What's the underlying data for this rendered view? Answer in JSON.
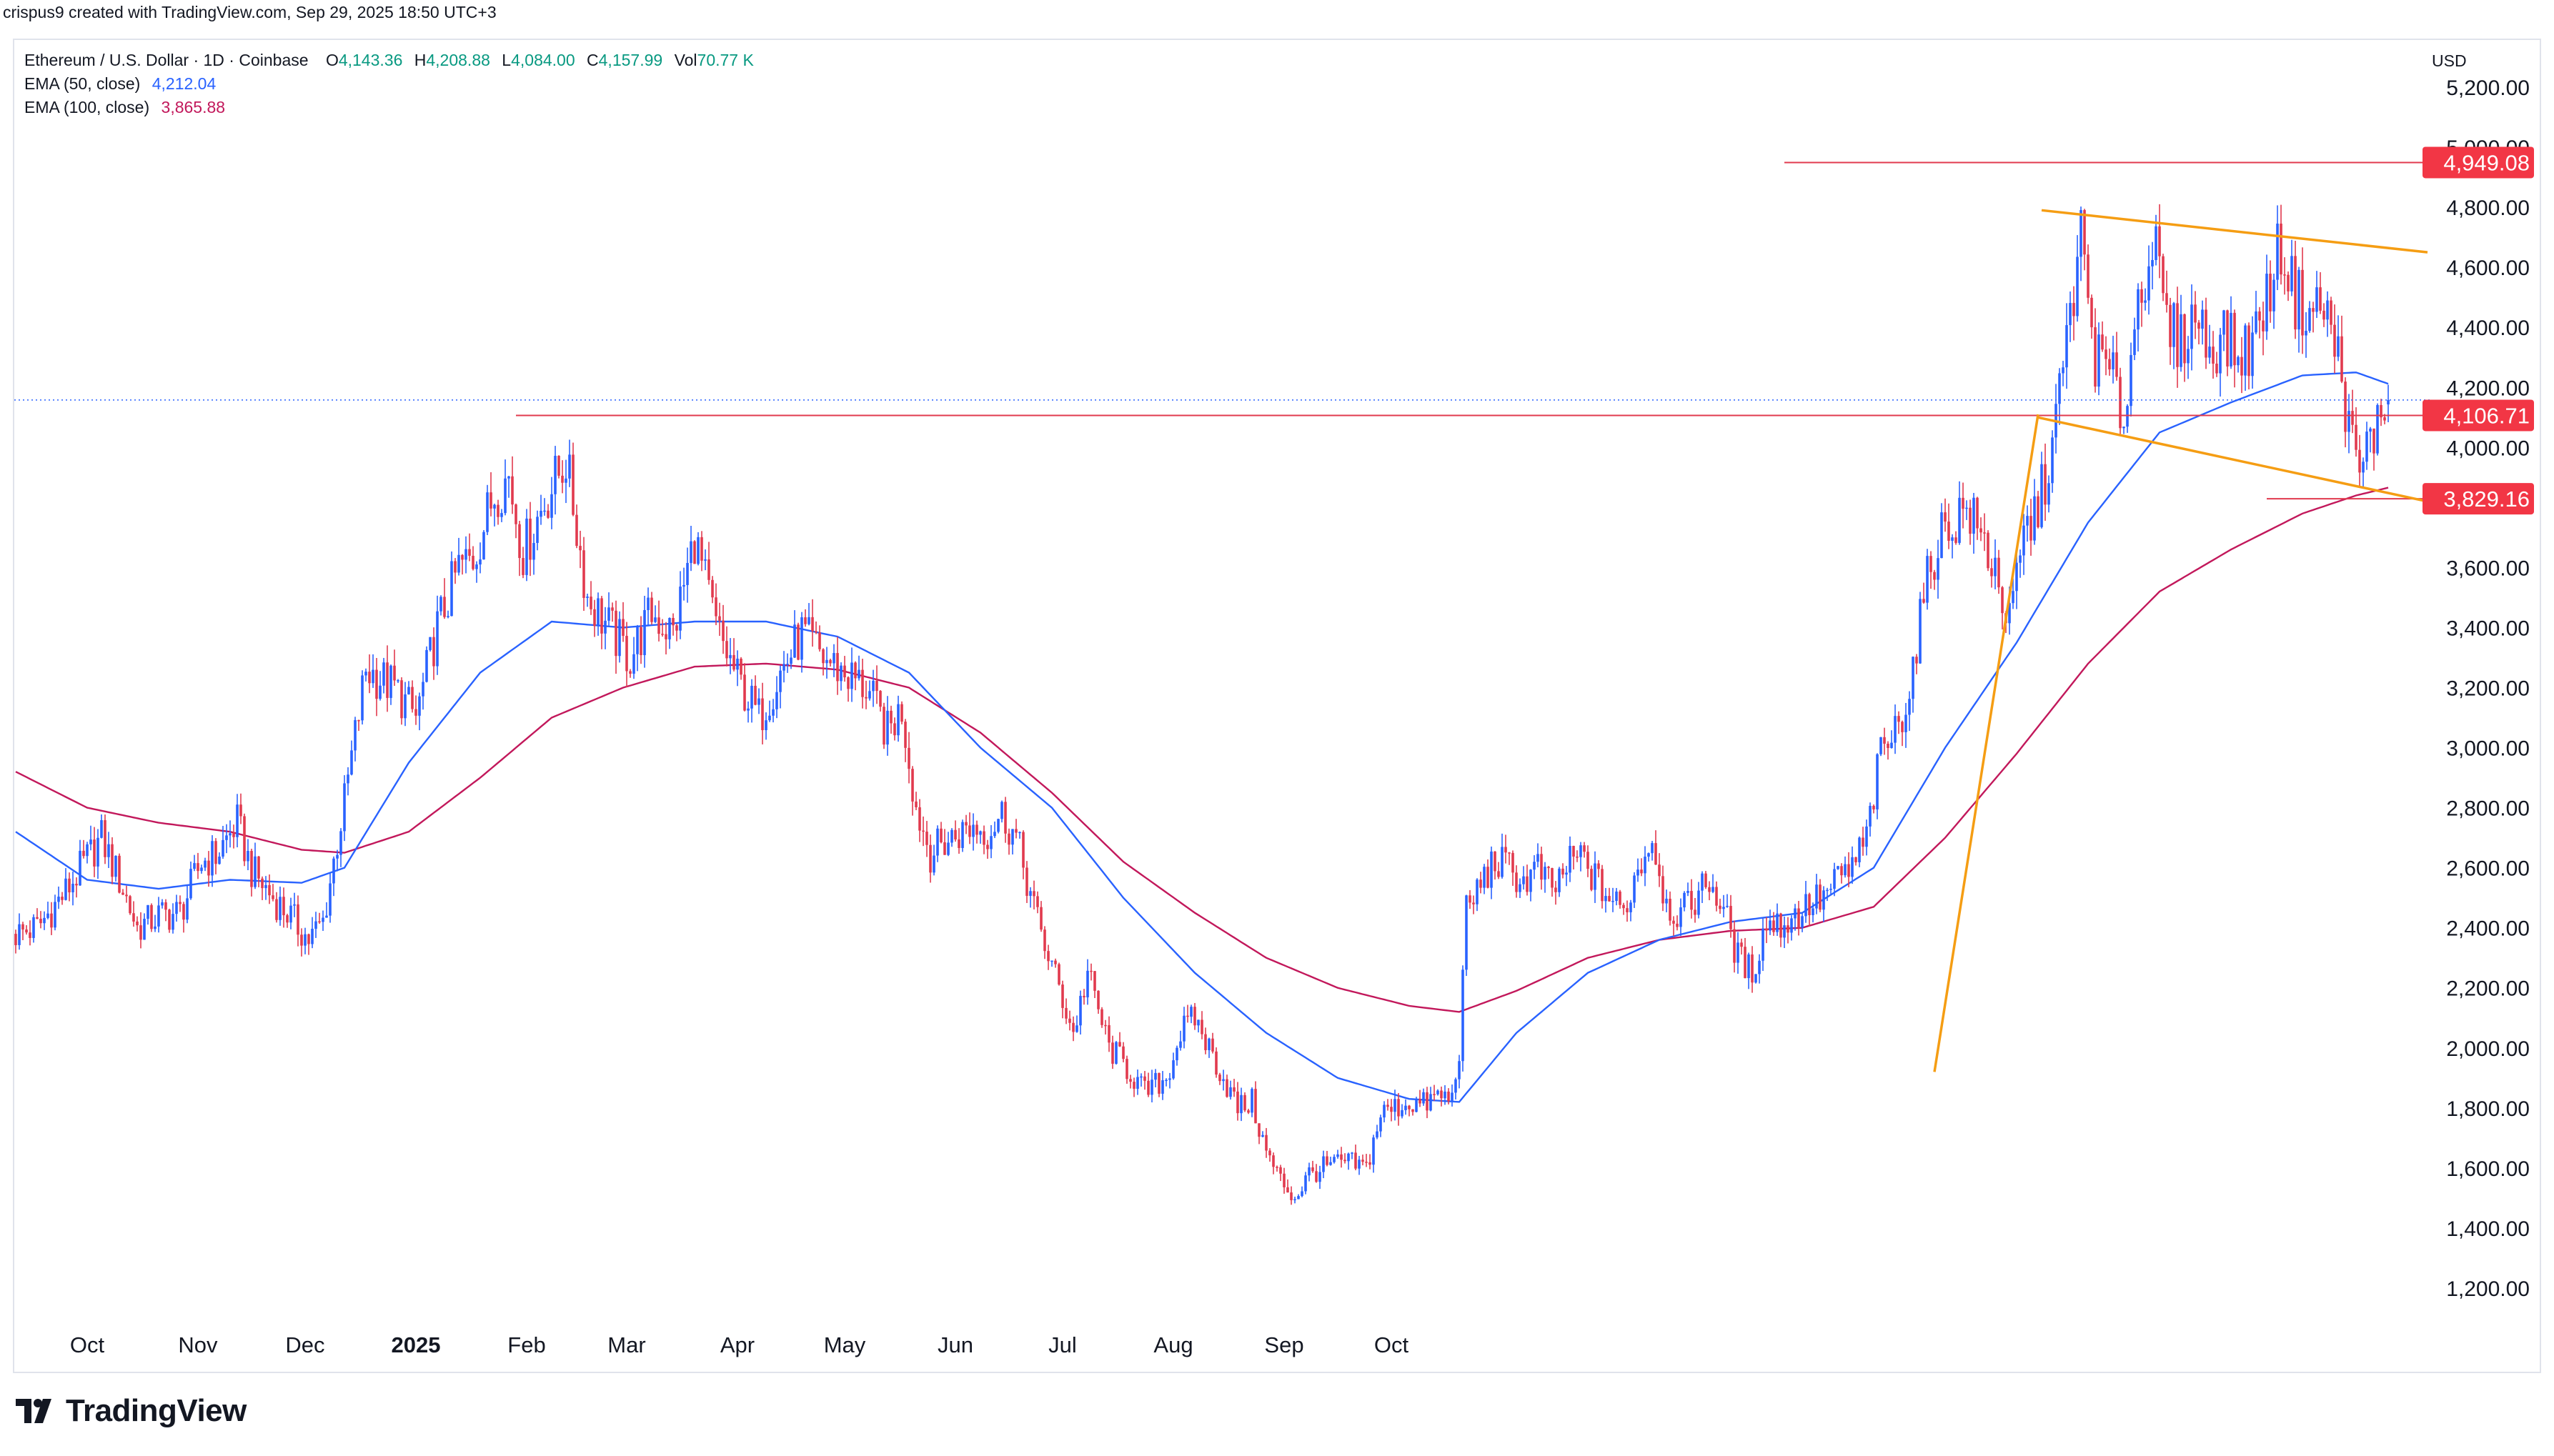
{
  "caption": "crispus9 created with TradingView.com, Sep 29, 2025 18:50 UTC+3",
  "legend": {
    "symbol": "Ethereum / U.S. Dollar · 1D · Coinbase",
    "open_key": "O",
    "open": "4,143.36",
    "high_key": "H",
    "high": "4,208.88",
    "low_key": "L",
    "low": "4,084.00",
    "close_key": "C",
    "close": "4,157.99",
    "vol_key": "Vol",
    "vol": "70.77 K",
    "ema50_label": "EMA (50, close)",
    "ema50_value": "4,212.04",
    "ema100_label": "EMA (100, close)",
    "ema100_value": "3,865.88"
  },
  "currency": "USD",
  "brand": "TradingView",
  "icon": "tradingview-logo-icon",
  "colors": {
    "up": "#089981",
    "candle_up": "#2962ff",
    "candle_down": "#e13a4e",
    "ema50": "#2962ff",
    "ema100": "#c2185b",
    "level_line": "#e13a4e",
    "pattern": "#f59d13",
    "tag_bg": "#f23645"
  },
  "chart_data": {
    "type": "candlestick",
    "title": "Ethereum / U.S. Dollar · 1D · Coinbase",
    "ylim": [
      1100,
      5300
    ],
    "y_ticks": [
      "1,200.00",
      "1,400.00",
      "1,600.00",
      "1,800.00",
      "2,000.00",
      "2,200.00",
      "2,400.00",
      "2,600.00",
      "2,800.00",
      "3,000.00",
      "3,200.00",
      "3,400.00",
      "3,600.00",
      "4,000.00",
      "4,200.00",
      "4,400.00",
      "4,600.00",
      "4,800.00",
      "5,000.00",
      "5,200.00"
    ],
    "x_ticks": [
      {
        "label": "Oct",
        "bold": false
      },
      {
        "label": "Nov",
        "bold": false
      },
      {
        "label": "Dec",
        "bold": false
      },
      {
        "label": "2025",
        "bold": true
      },
      {
        "label": "Feb",
        "bold": false
      },
      {
        "label": "Mar",
        "bold": false
      },
      {
        "label": "Apr",
        "bold": false
      },
      {
        "label": "May",
        "bold": false
      },
      {
        "label": "Jun",
        "bold": false
      },
      {
        "label": "Jul",
        "bold": false
      },
      {
        "label": "Aug",
        "bold": false
      },
      {
        "label": "Sep",
        "bold": false
      },
      {
        "label": "Oct",
        "bold": false
      }
    ],
    "start_date": "2024-09-11",
    "close_path": [
      [
        0,
        2380
      ],
      [
        6,
        2400
      ],
      [
        14,
        2520
      ],
      [
        20,
        2630
      ],
      [
        24,
        2700
      ],
      [
        30,
        2530
      ],
      [
        34,
        2400
      ],
      [
        40,
        2440
      ],
      [
        46,
        2450
      ],
      [
        52,
        2620
      ],
      [
        56,
        2640
      ],
      [
        62,
        2750
      ],
      [
        66,
        2590
      ],
      [
        72,
        2500
      ],
      [
        76,
        2450
      ],
      [
        82,
        2360
      ],
      [
        86,
        2420
      ],
      [
        92,
        2820
      ],
      [
        98,
        3260
      ],
      [
        106,
        3200
      ],
      [
        112,
        3100
      ],
      [
        118,
        3400
      ],
      [
        124,
        3600
      ],
      [
        128,
        3630
      ],
      [
        134,
        3850
      ],
      [
        138,
        3900
      ],
      [
        142,
        3650
      ],
      [
        148,
        3820
      ],
      [
        154,
        3960
      ],
      [
        160,
        3500
      ],
      [
        166,
        3400
      ],
      [
        172,
        3300
      ],
      [
        178,
        3450
      ],
      [
        184,
        3380
      ],
      [
        190,
        3700
      ],
      [
        196,
        3400
      ],
      [
        202,
        3230
      ],
      [
        208,
        3100
      ],
      [
        214,
        3250
      ],
      [
        220,
        3380
      ],
      [
        226,
        3300
      ],
      [
        232,
        3250
      ],
      [
        238,
        3200
      ],
      [
        244,
        3050
      ],
      [
        248,
        3130
      ],
      [
        252,
        2800
      ],
      [
        256,
        2650
      ],
      [
        262,
        2700
      ],
      [
        268,
        2740
      ],
      [
        272,
        2720
      ],
      [
        276,
        2780
      ],
      [
        280,
        2700
      ],
      [
        286,
        2420
      ],
      [
        292,
        2200
      ],
      [
        296,
        2050
      ],
      [
        300,
        2250
      ],
      [
        306,
        2000
      ],
      [
        310,
        1950
      ],
      [
        316,
        1850
      ],
      [
        322,
        1900
      ],
      [
        326,
        2050
      ],
      [
        330,
        2100
      ],
      [
        334,
        2000
      ],
      [
        338,
        1900
      ],
      [
        342,
        1800
      ],
      [
        346,
        1820
      ],
      [
        350,
        1650
      ],
      [
        354,
        1560
      ],
      [
        358,
        1500
      ],
      [
        362,
        1580
      ],
      [
        366,
        1600
      ],
      [
        372,
        1620
      ],
      [
        378,
        1600
      ],
      [
        382,
        1780
      ],
      [
        386,
        1800
      ],
      [
        390,
        1820
      ],
      [
        394,
        1810
      ],
      [
        398,
        1840
      ],
      [
        402,
        1830
      ],
      [
        404,
        2000
      ],
      [
        406,
        2450
      ],
      [
        410,
        2550
      ],
      [
        414,
        2620
      ],
      [
        418,
        2600
      ],
      [
        422,
        2550
      ],
      [
        426,
        2600
      ],
      [
        430,
        2520
      ],
      [
        434,
        2600
      ],
      [
        438,
        2640
      ],
      [
        442,
        2560
      ],
      [
        446,
        2500
      ],
      [
        450,
        2450
      ],
      [
        454,
        2600
      ],
      [
        458,
        2700
      ],
      [
        462,
        2480
      ],
      [
        466,
        2440
      ],
      [
        470,
        2500
      ],
      [
        474,
        2560
      ],
      [
        478,
        2460
      ],
      [
        482,
        2300
      ],
      [
        486,
        2250
      ],
      [
        490,
        2420
      ],
      [
        494,
        2410
      ],
      [
        498,
        2440
      ],
      [
        502,
        2480
      ],
      [
        506,
        2500
      ],
      [
        510,
        2560
      ],
      [
        514,
        2600
      ],
      [
        518,
        2700
      ],
      [
        522,
        2980
      ],
      [
        526,
        3050
      ],
      [
        530,
        3200
      ],
      [
        534,
        3500
      ],
      [
        538,
        3700
      ],
      [
        542,
        3750
      ],
      [
        546,
        3800
      ],
      [
        550,
        3700
      ],
      [
        554,
        3600
      ],
      [
        558,
        3400
      ],
      [
        562,
        3700
      ],
      [
        566,
        3800
      ],
      [
        570,
        4000
      ],
      [
        574,
        4350
      ],
      [
        578,
        4700
      ],
      [
        582,
        4300
      ],
      [
        586,
        4250
      ],
      [
        590,
        4100
      ],
      [
        594,
        4500
      ],
      [
        598,
        4700
      ],
      [
        602,
        4400
      ],
      [
        606,
        4350
      ],
      [
        610,
        4450
      ],
      [
        614,
        4330
      ],
      [
        618,
        4380
      ],
      [
        622,
        4300
      ],
      [
        626,
        4350
      ],
      [
        630,
        4500
      ],
      [
        634,
        4680
      ],
      [
        638,
        4500
      ],
      [
        642,
        4450
      ],
      [
        646,
        4470
      ],
      [
        650,
        4300
      ],
      [
        652,
        4150
      ],
      [
        654,
        4000
      ],
      [
        656,
        3900
      ],
      [
        658,
        4000
      ],
      [
        660,
        4050
      ],
      [
        662,
        4100
      ],
      [
        664,
        4158
      ]
    ],
    "ema50_path": [
      [
        0,
        2720
      ],
      [
        20,
        2560
      ],
      [
        40,
        2530
      ],
      [
        60,
        2560
      ],
      [
        80,
        2550
      ],
      [
        92,
        2600
      ],
      [
        110,
        2950
      ],
      [
        130,
        3250
      ],
      [
        150,
        3420
      ],
      [
        170,
        3400
      ],
      [
        190,
        3420
      ],
      [
        210,
        3420
      ],
      [
        230,
        3370
      ],
      [
        250,
        3250
      ],
      [
        270,
        3000
      ],
      [
        290,
        2800
      ],
      [
        310,
        2500
      ],
      [
        330,
        2250
      ],
      [
        350,
        2050
      ],
      [
        370,
        1900
      ],
      [
        390,
        1830
      ],
      [
        404,
        1820
      ],
      [
        420,
        2050
      ],
      [
        440,
        2250
      ],
      [
        460,
        2360
      ],
      [
        480,
        2420
      ],
      [
        500,
        2450
      ],
      [
        520,
        2600
      ],
      [
        540,
        3000
      ],
      [
        560,
        3350
      ],
      [
        580,
        3750
      ],
      [
        600,
        4050
      ],
      [
        620,
        4150
      ],
      [
        640,
        4240
      ],
      [
        655,
        4250
      ],
      [
        664,
        4212
      ]
    ],
    "ema100_path": [
      [
        0,
        2920
      ],
      [
        20,
        2800
      ],
      [
        40,
        2750
      ],
      [
        60,
        2720
      ],
      [
        80,
        2660
      ],
      [
        92,
        2650
      ],
      [
        110,
        2720
      ],
      [
        130,
        2900
      ],
      [
        150,
        3100
      ],
      [
        170,
        3200
      ],
      [
        190,
        3270
      ],
      [
        210,
        3280
      ],
      [
        230,
        3260
      ],
      [
        250,
        3200
      ],
      [
        270,
        3050
      ],
      [
        290,
        2850
      ],
      [
        310,
        2620
      ],
      [
        330,
        2450
      ],
      [
        350,
        2300
      ],
      [
        370,
        2200
      ],
      [
        390,
        2140
      ],
      [
        404,
        2120
      ],
      [
        420,
        2190
      ],
      [
        440,
        2300
      ],
      [
        460,
        2360
      ],
      [
        480,
        2390
      ],
      [
        500,
        2400
      ],
      [
        520,
        2470
      ],
      [
        540,
        2700
      ],
      [
        560,
        2980
      ],
      [
        580,
        3280
      ],
      [
        600,
        3520
      ],
      [
        620,
        3660
      ],
      [
        640,
        3780
      ],
      [
        655,
        3840
      ],
      [
        664,
        3866
      ]
    ],
    "levels": [
      {
        "name": "resistance-top",
        "price": 4949.08,
        "label": "4,949.08",
        "from_day": 495
      },
      {
        "name": "breakout-level",
        "price": 4106.71,
        "label": "4,106.71",
        "from_day": 140
      },
      {
        "name": "support",
        "price": 3829.16,
        "label": "3,829.16",
        "from_day": 630
      }
    ],
    "last_price": 4157.99,
    "pattern_lines": [
      {
        "name": "flag-top",
        "from": [
          567,
          4790
        ],
        "to": [
          675,
          4650
        ]
      },
      {
        "name": "flag-bottom",
        "from": [
          566,
          4100
        ],
        "to": [
          675,
          3820
        ]
      },
      {
        "name": "flagpole",
        "from": [
          537,
          1920
        ],
        "to": [
          566,
          4110
        ]
      }
    ],
    "grid": false,
    "legend_position": "top-left"
  }
}
